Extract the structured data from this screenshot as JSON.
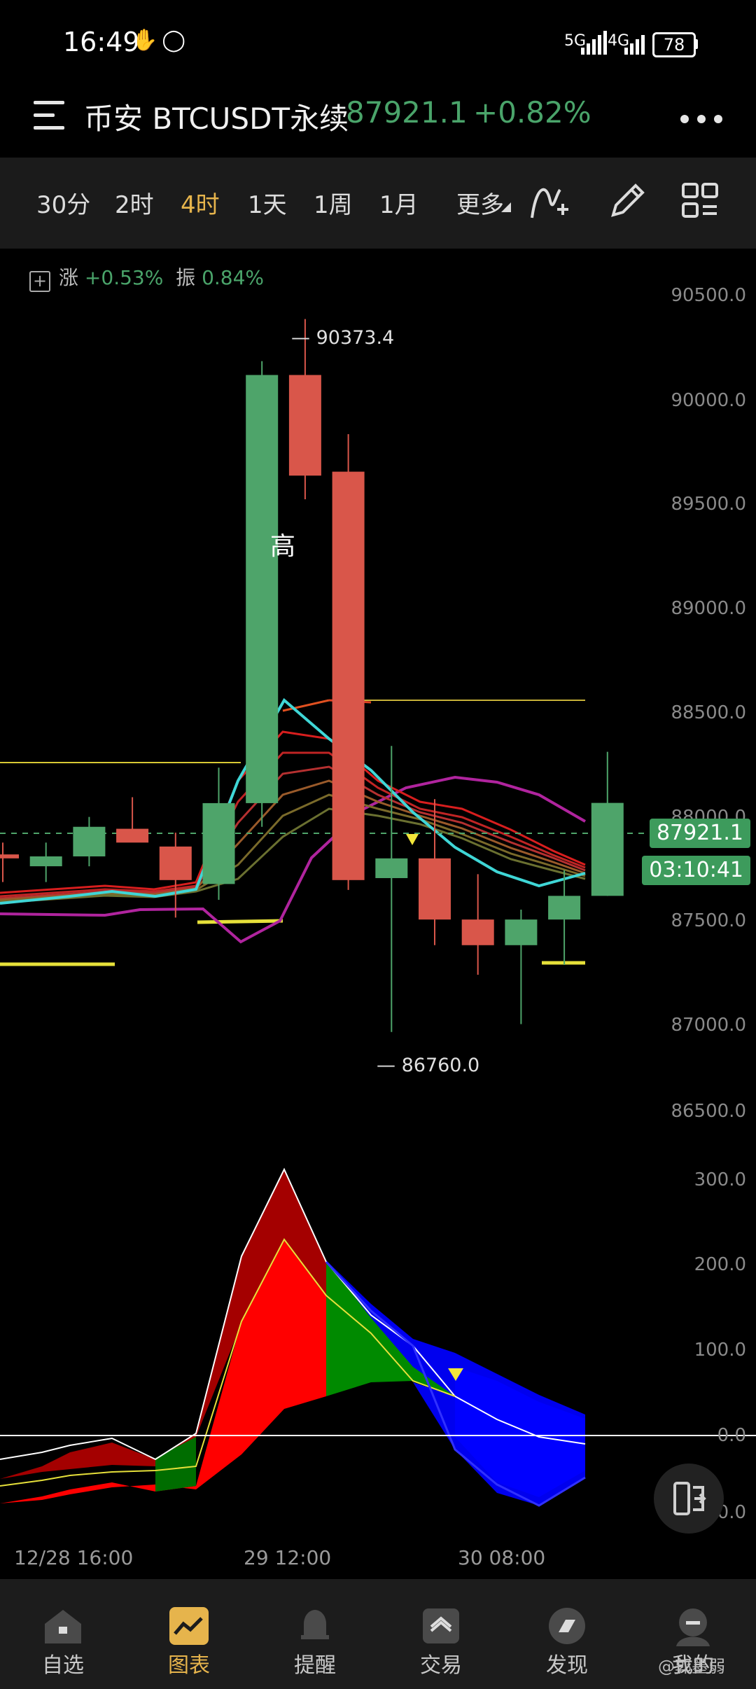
{
  "status_bar": {
    "time": "16:49",
    "signal1": "5G",
    "signal2": "4G",
    "battery": "78"
  },
  "header": {
    "title": "币安 BTCUSDT永续",
    "price": "87921.1",
    "change": "+0.82%"
  },
  "timeframes": {
    "items": [
      "30分",
      "2时",
      "4时",
      "1天",
      "1周",
      "1月",
      "更多"
    ],
    "active": "4时"
  },
  "legend": {
    "rise_label": "涨",
    "rise_value": "+0.53%",
    "amp_label": "振",
    "amp_value": "0.84%"
  },
  "chart": {
    "high_marker": "高",
    "high_label": "— 90373.4",
    "low_label": "— 86760.0",
    "price_badge": "87921.1",
    "countdown_badge": "03:10:41",
    "y_ticks": [
      "90500.0",
      "90000.0",
      "89500.0",
      "89000.0",
      "88500.0",
      "88000.0",
      "87500.0",
      "87000.0",
      "86500.0"
    ],
    "osc_ticks": [
      "300.0",
      "200.0",
      "100.0",
      "0.0",
      "00.0"
    ],
    "x_ticks": [
      "12/28 16:00",
      "29 12:00",
      "30 08:00"
    ],
    "colors": {
      "up": "#4ea46a",
      "down": "#d9564a"
    }
  },
  "chart_data": {
    "type": "candlestick",
    "candles": [
      {
        "o": 87660,
        "h": 87720,
        "l": 87520,
        "c": 87640
      },
      {
        "o": 87600,
        "h": 87720,
        "l": 87520,
        "c": 87650
      },
      {
        "o": 87650,
        "h": 87850,
        "l": 87600,
        "c": 87800
      },
      {
        "o": 87790,
        "h": 87950,
        "l": 87730,
        "c": 87720
      },
      {
        "o": 87700,
        "h": 87770,
        "l": 87340,
        "c": 87530
      },
      {
        "o": 87510,
        "h": 88100,
        "l": 87430,
        "c": 87920
      },
      {
        "o": 87920,
        "h": 90160,
        "l": 87800,
        "c": 90090
      },
      {
        "o": 90090,
        "h": 90373.4,
        "l": 89460,
        "c": 89580
      },
      {
        "o": 89600,
        "h": 89790,
        "l": 87480,
        "c": 87530
      },
      {
        "o": 87540,
        "h": 88210,
        "l": 86760,
        "c": 87640
      },
      {
        "o": 87640,
        "h": 87940,
        "l": 87200,
        "c": 87330
      },
      {
        "o": 87330,
        "h": 87560,
        "l": 87050,
        "c": 87200
      },
      {
        "o": 87200,
        "h": 87380,
        "l": 86800,
        "c": 87330
      },
      {
        "o": 87330,
        "h": 87580,
        "l": 87100,
        "c": 87450
      },
      {
        "o": 87450,
        "h": 88180,
        "l": 87450,
        "c": 87921.1
      }
    ]
  },
  "nav": {
    "items": [
      "自选",
      "图表",
      "提醒",
      "交易",
      "发现",
      "我的"
    ],
    "active": "图表"
  },
  "watermark": "@郭墨弱"
}
